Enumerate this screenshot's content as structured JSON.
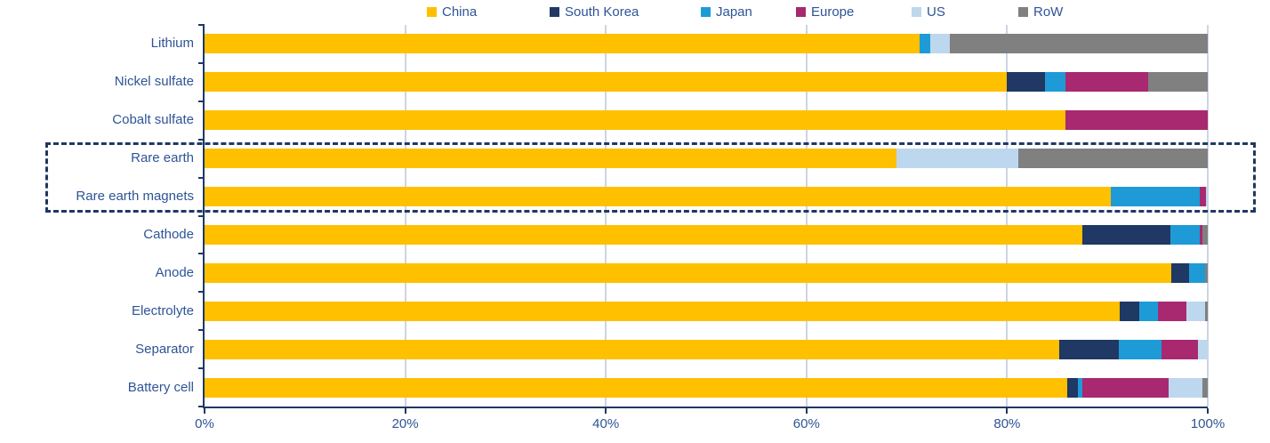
{
  "chart_data": {
    "type": "bar",
    "orientation": "horizontal",
    "stacked": true,
    "unit": "%",
    "title": "",
    "xlabel": "",
    "ylabel": "",
    "xlim": [
      0,
      100
    ],
    "grid": "vertical",
    "legend_position": "top",
    "categories": [
      "Lithium",
      "Nickel sulfate",
      "Cobalt sulfate",
      "Rare earth",
      "Rare earth magnets",
      "Cathode",
      "Anode",
      "Electrolyte",
      "Separator",
      "Battery cell"
    ],
    "series": [
      {
        "name": "China",
        "color": "#FFC000",
        "values": [
          71.3,
          80.0,
          85.8,
          69.0,
          90.3,
          87.5,
          96.4,
          91.2,
          85.2,
          86.0
        ]
      },
      {
        "name": "South Korea",
        "color": "#1F3864",
        "values": [
          0,
          3.8,
          0,
          0,
          0,
          8.8,
          1.7,
          2.0,
          5.9,
          1.1
        ]
      },
      {
        "name": "Japan",
        "color": "#1E9BD7",
        "values": [
          1.0,
          2.0,
          0,
          0,
          8.9,
          2.9,
          1.6,
          1.8,
          4.3,
          0.4
        ]
      },
      {
        "name": "Europe",
        "color": "#A8296F",
        "values": [
          0,
          8.3,
          14.2,
          0,
          0.6,
          0.3,
          0,
          2.9,
          3.6,
          8.6
        ]
      },
      {
        "name": "US",
        "color": "#BDD7EE",
        "values": [
          2.0,
          0,
          0,
          12.1,
          0.2,
          0,
          0,
          1.8,
          1.0,
          3.4
        ]
      },
      {
        "name": "RoW",
        "color": "#808080",
        "values": [
          25.7,
          5.9,
          0,
          18.9,
          0,
          0.5,
          0.3,
          0.3,
          0,
          0.5
        ]
      }
    ],
    "x_ticks": [
      "0%",
      "20%",
      "40%",
      "60%",
      "80%",
      "100%"
    ],
    "highlight": {
      "rows": [
        "Rare earth",
        "Rare earth magnets"
      ],
      "style": "dashed-outline",
      "color": "#1F3864"
    }
  },
  "colors": {
    "label_text": "#2E5496",
    "axis": "#1F3864",
    "gridline": "#ccd5e2",
    "background": "#ffffff"
  }
}
